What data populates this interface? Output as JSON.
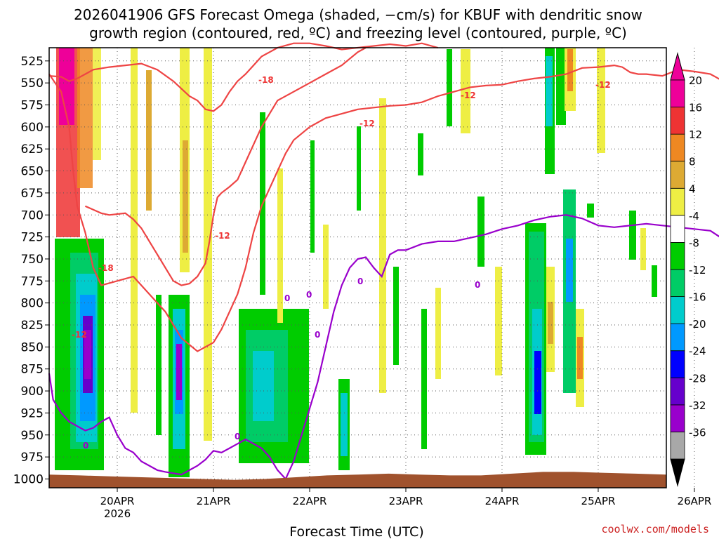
{
  "chart_data": {
    "type": "heatmap",
    "title_line1": "2026041906 GFS Forecast Omega (shaded, −cm/s) for KBUF with dendritic snow",
    "title_line2": "growth region (contoured, red, ºC) and freezing level (contoured, purple, ºC)",
    "xlabel": "Forecast Time (UTC)",
    "credit": "coolwx.com/models",
    "x_range_hours": [
      -17,
      137
    ],
    "y_range_hpa": [
      510,
      1010
    ],
    "y_ticks": [
      525,
      550,
      575,
      600,
      625,
      650,
      675,
      700,
      725,
      750,
      775,
      800,
      825,
      850,
      875,
      900,
      925,
      950,
      975,
      1000
    ],
    "x_ticks": [
      {
        "hour": 0,
        "label": "20APR",
        "sub": "2026"
      },
      {
        "hour": 24,
        "label": "21APR",
        "sub": ""
      },
      {
        "hour": 48,
        "label": "22APR",
        "sub": ""
      },
      {
        "hour": 72,
        "label": "23APR",
        "sub": ""
      },
      {
        "hour": 96,
        "label": "24APR",
        "sub": ""
      },
      {
        "hour": 120,
        "label": "25APR",
        "sub": ""
      },
      {
        "hour": 144,
        "label": "26APR",
        "sub": ""
      }
    ],
    "colorbar": {
      "levels": [
        -36,
        -32,
        -28,
        -24,
        -20,
        -16,
        -12,
        -8,
        -4,
        4,
        8,
        12,
        16,
        20
      ],
      "labels": [
        "20",
        "16",
        "12",
        "8",
        "4",
        "-4",
        "-8",
        "-12",
        "-16",
        "-20",
        "-24",
        "-28",
        "-32",
        "-36"
      ],
      "colors": [
        "#a8a8a8",
        "#9900cc",
        "#6600cc",
        "#0000ff",
        "#0099ff",
        "#00cccc",
        "#00cc66",
        "#00cc00",
        "#ffffff",
        "#eeee44",
        "#ddaa33",
        "#ee8822",
        "#ee3333",
        "#ee0099"
      ]
    },
    "ground_color": "#a0522d",
    "contour_labels": [
      {
        "text": "-18",
        "color": "red"
      },
      {
        "text": "-12",
        "color": "red"
      },
      {
        "text": "-12",
        "color": "red"
      },
      {
        "text": "-12",
        "color": "red"
      },
      {
        "text": "-12",
        "color": "red"
      },
      {
        "text": "-18",
        "color": "red"
      },
      {
        "text": "-12",
        "color": "red"
      },
      {
        "text": "0",
        "color": "purple"
      },
      {
        "text": "0",
        "color": "purple"
      },
      {
        "text": "0",
        "color": "purple"
      },
      {
        "text": "0",
        "color": "purple"
      },
      {
        "text": "0",
        "color": "purple"
      },
      {
        "text": "0",
        "color": "purple"
      },
      {
        "text": "0",
        "color": "purple"
      }
    ],
    "series": [
      {
        "name": "dendritic -12C contour (upper)",
        "color": "#ee4444",
        "points": [
          [
            -17,
            542
          ],
          [
            -14,
            543
          ],
          [
            -12,
            548
          ],
          [
            -10,
            545
          ],
          [
            -6,
            535
          ],
          [
            -2,
            532
          ],
          [
            2,
            530
          ],
          [
            6,
            528
          ],
          [
            10,
            535
          ],
          [
            14,
            548
          ],
          [
            18,
            565
          ],
          [
            20,
            570
          ],
          [
            22,
            580
          ],
          [
            24,
            582
          ],
          [
            26,
            575
          ],
          [
            28,
            560
          ],
          [
            30,
            548
          ],
          [
            32,
            540
          ],
          [
            34,
            530
          ],
          [
            36,
            520
          ],
          [
            40,
            510
          ],
          [
            44,
            505
          ],
          [
            48,
            505
          ],
          [
            52,
            508
          ],
          [
            56,
            512
          ],
          [
            60,
            510
          ],
          [
            64,
            508
          ],
          [
            68,
            506
          ],
          [
            72,
            508
          ],
          [
            76,
            505
          ],
          [
            80,
            510
          ]
        ]
      },
      {
        "name": "dendritic -12C contour (lower)",
        "color": "#ee4444",
        "points": [
          [
            -17,
            540
          ],
          [
            -14,
            560
          ],
          [
            -12,
            600
          ],
          [
            -11,
            650
          ],
          [
            -10,
            690
          ],
          [
            -8,
            720
          ],
          [
            -6,
            760
          ],
          [
            -4,
            780
          ],
          [
            0,
            775
          ],
          [
            4,
            770
          ],
          [
            8,
            790
          ],
          [
            12,
            810
          ],
          [
            16,
            840
          ],
          [
            20,
            855
          ],
          [
            24,
            845
          ],
          [
            26,
            830
          ],
          [
            28,
            810
          ],
          [
            30,
            790
          ],
          [
            32,
            760
          ],
          [
            34,
            720
          ],
          [
            36,
            690
          ],
          [
            38,
            670
          ],
          [
            40,
            650
          ],
          [
            42,
            630
          ],
          [
            44,
            615
          ],
          [
            48,
            600
          ],
          [
            52,
            590
          ],
          [
            56,
            585
          ],
          [
            60,
            580
          ],
          [
            64,
            578
          ],
          [
            68,
            576
          ],
          [
            72,
            575
          ],
          [
            76,
            572
          ],
          [
            80,
            565
          ],
          [
            84,
            560
          ],
          [
            88,
            555
          ],
          [
            92,
            553
          ],
          [
            96,
            552
          ],
          [
            100,
            548
          ],
          [
            104,
            545
          ],
          [
            108,
            543
          ],
          [
            112,
            540
          ],
          [
            116,
            533
          ],
          [
            120,
            532
          ],
          [
            124,
            530
          ],
          [
            126,
            532
          ],
          [
            128,
            538
          ],
          [
            130,
            540
          ],
          [
            132,
            540
          ],
          [
            136,
            542
          ],
          [
            140,
            535
          ],
          [
            144,
            537
          ],
          [
            148,
            540
          ],
          [
            152,
            550
          ],
          [
            156,
            560
          ],
          [
            160,
            570
          ],
          [
            164,
            575
          ],
          [
            167,
            578
          ]
        ]
      },
      {
        "name": "dendritic -18C contour",
        "color": "#ee4444",
        "points": [
          [
            -8,
            690
          ],
          [
            -4,
            698
          ],
          [
            -2,
            700
          ],
          [
            2,
            698
          ],
          [
            4,
            705
          ],
          [
            6,
            715
          ],
          [
            8,
            730
          ],
          [
            10,
            745
          ],
          [
            12,
            760
          ],
          [
            14,
            775
          ],
          [
            16,
            780
          ],
          [
            18,
            778
          ],
          [
            20,
            770
          ],
          [
            22,
            755
          ],
          [
            23,
            730
          ],
          [
            24,
            700
          ],
          [
            25,
            680
          ],
          [
            26,
            675
          ],
          [
            28,
            668
          ],
          [
            30,
            660
          ],
          [
            32,
            640
          ],
          [
            34,
            620
          ],
          [
            36,
            600
          ],
          [
            40,
            570
          ],
          [
            44,
            560
          ],
          [
            48,
            550
          ],
          [
            52,
            540
          ],
          [
            56,
            530
          ],
          [
            60,
            515
          ],
          [
            62,
            510
          ]
        ]
      },
      {
        "name": "freezing level 0C",
        "color": "#9900cc",
        "points": [
          [
            -17,
            880
          ],
          [
            -16,
            910
          ],
          [
            -14,
            925
          ],
          [
            -12,
            935
          ],
          [
            -10,
            940
          ],
          [
            -8,
            945
          ],
          [
            -6,
            942
          ],
          [
            -4,
            935
          ],
          [
            -2,
            930
          ],
          [
            0,
            950
          ],
          [
            2,
            965
          ],
          [
            4,
            970
          ],
          [
            6,
            980
          ],
          [
            8,
            985
          ],
          [
            10,
            990
          ],
          [
            12,
            992
          ],
          [
            16,
            995
          ],
          [
            18,
            990
          ],
          [
            20,
            985
          ],
          [
            22,
            978
          ],
          [
            24,
            968
          ],
          [
            26,
            970
          ],
          [
            28,
            965
          ],
          [
            30,
            960
          ],
          [
            32,
            955
          ],
          [
            34,
            960
          ],
          [
            36,
            965
          ],
          [
            38,
            975
          ],
          [
            40,
            990
          ],
          [
            42,
            1000
          ],
          [
            44,
            980
          ],
          [
            46,
            950
          ],
          [
            48,
            920
          ],
          [
            50,
            890
          ],
          [
            52,
            850
          ],
          [
            54,
            810
          ],
          [
            56,
            780
          ],
          [
            58,
            760
          ],
          [
            60,
            750
          ],
          [
            62,
            748
          ],
          [
            64,
            760
          ],
          [
            66,
            770
          ],
          [
            68,
            745
          ],
          [
            70,
            740
          ],
          [
            72,
            740
          ],
          [
            76,
            733
          ],
          [
            80,
            730
          ],
          [
            84,
            730
          ],
          [
            88,
            726
          ],
          [
            92,
            722
          ],
          [
            96,
            716
          ],
          [
            100,
            712
          ],
          [
            104,
            706
          ],
          [
            108,
            702
          ],
          [
            112,
            700
          ],
          [
            116,
            704
          ],
          [
            120,
            712
          ],
          [
            124,
            714
          ],
          [
            128,
            712
          ],
          [
            132,
            710
          ],
          [
            136,
            712
          ],
          [
            140,
            714
          ],
          [
            144,
            716
          ],
          [
            148,
            718
          ],
          [
            152,
            730
          ],
          [
            156,
            740
          ],
          [
            160,
            748
          ],
          [
            164,
            755
          ],
          [
            167,
            760
          ]
        ]
      }
    ]
  }
}
